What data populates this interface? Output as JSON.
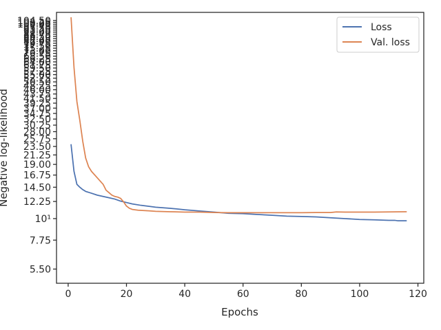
{
  "chart_data": {
    "type": "line",
    "title": "",
    "xlabel": "Epochs",
    "ylabel": "Negative log-likelihood",
    "xlim": [
      -4,
      122
    ],
    "ylim": [
      4.65,
      115
    ],
    "yscale": "log",
    "grid": false,
    "legend_position": "top-right",
    "x_ticks": [
      0,
      20,
      40,
      60,
      80,
      100,
      120
    ],
    "x_tick_labels": [
      "0",
      "20",
      "40",
      "60",
      "80",
      "100",
      "120"
    ],
    "y_ticks": [
      5.5,
      7.75,
      10,
      12.25,
      14.5,
      16.75,
      19.0,
      21.25,
      23.5,
      25.75,
      28.0,
      30.25,
      32.5,
      34.75,
      37.0,
      39.25,
      41.5,
      43.75,
      46.0,
      48.25,
      50.5,
      52.75,
      55.0,
      57.25,
      59.5,
      61.75,
      64.0,
      66.25,
      68.5,
      70.75,
      73.0,
      75.25,
      77.5,
      79.75,
      82.0,
      84.25,
      86.5,
      88.75,
      91.0,
      93.25,
      95.5,
      97.75,
      100.0,
      102.25,
      104.5
    ],
    "y_tick_labels": [
      "5.50",
      "7.75",
      "10¹",
      "12.25",
      "14.50",
      "16.75",
      "19.00",
      "21.25",
      "23.50",
      "25.75",
      "28.00",
      "30.25",
      "32.50",
      "34.75",
      "37.00",
      "39.25",
      "41.50",
      "43.75",
      "46.00",
      "48.25",
      "50.50",
      "52.75",
      "55.00",
      "57.25",
      "59.50",
      "61.75",
      "64.00",
      "66.25",
      "68.50",
      "70.75",
      "73.00",
      "75.25",
      "77.50",
      "79.75",
      "82.00",
      "84.25",
      "86.50",
      "88.75",
      "91.00",
      "93.25",
      "95.50",
      "97.75",
      "100.00",
      "102.25",
      "104.50"
    ],
    "series": [
      {
        "name": "Loss",
        "color": "#4c72b0",
        "x": [
          1,
          2,
          3,
          4,
          5,
          6,
          8,
          10,
          12,
          14,
          16,
          18,
          20,
          22,
          25,
          28,
          30,
          35,
          40,
          45,
          50,
          55,
          60,
          65,
          70,
          75,
          80,
          85,
          90,
          95,
          100,
          105,
          110,
          112,
          113,
          114,
          116
        ],
        "y": [
          24.0,
          17.5,
          15.0,
          14.5,
          14.1,
          13.8,
          13.5,
          13.2,
          13.0,
          12.8,
          12.6,
          12.3,
          12.1,
          11.9,
          11.7,
          11.55,
          11.45,
          11.3,
          11.1,
          10.95,
          10.8,
          10.65,
          10.6,
          10.5,
          10.4,
          10.3,
          10.25,
          10.2,
          10.1,
          10.0,
          9.9,
          9.85,
          9.8,
          9.8,
          9.75,
          9.75,
          9.75
        ]
      },
      {
        "name": "Val. loss",
        "color": "#dd8452",
        "x": [
          1,
          2,
          3,
          4,
          5,
          6,
          7,
          8,
          10,
          12,
          13,
          14,
          15,
          16,
          17,
          18,
          19,
          20,
          21,
          22,
          24,
          26,
          28,
          30,
          35,
          40,
          45,
          50,
          55,
          60,
          65,
          70,
          75,
          80,
          85,
          90,
          92,
          95,
          100,
          105,
          110,
          116
        ],
        "y": [
          108,
          60,
          40,
          32,
          25,
          20.5,
          18.5,
          17.5,
          16.2,
          15.0,
          14.0,
          13.6,
          13.2,
          13.0,
          12.9,
          12.7,
          12.2,
          11.6,
          11.3,
          11.15,
          11.05,
          11.0,
          10.95,
          10.9,
          10.85,
          10.8,
          10.8,
          10.75,
          10.72,
          10.72,
          10.72,
          10.72,
          10.72,
          10.72,
          10.75,
          10.75,
          10.82,
          10.8,
          10.8,
          10.8,
          10.82,
          10.85
        ]
      }
    ]
  }
}
